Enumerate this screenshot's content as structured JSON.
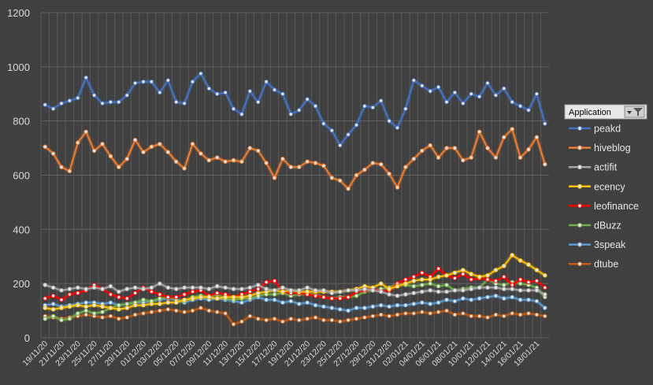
{
  "chart_data": {
    "type": "line",
    "title": "",
    "xlabel": "",
    "ylabel": "",
    "ylim": [
      0,
      1200
    ],
    "yticks": [
      0,
      200,
      400,
      600,
      800,
      1000,
      1200
    ],
    "grid": true,
    "legend_title": "Application",
    "legend_placement": "right",
    "x": [
      "19/11/20",
      "20/11/20",
      "21/11/20",
      "22/11/20",
      "23/11/20",
      "24/11/20",
      "25/11/20",
      "26/11/20",
      "27/11/20",
      "28/11/20",
      "29/11/20",
      "30/11/20",
      "01/12/20",
      "02/12/20",
      "03/12/20",
      "04/12/20",
      "05/12/20",
      "06/12/20",
      "07/12/20",
      "08/12/20",
      "09/12/20",
      "10/12/20",
      "11/12/20",
      "12/12/20",
      "13/12/20",
      "14/12/20",
      "15/12/20",
      "16/12/20",
      "17/12/20",
      "18/12/20",
      "19/12/20",
      "20/12/20",
      "21/12/20",
      "22/12/20",
      "23/12/20",
      "24/12/20",
      "25/12/20",
      "26/12/20",
      "27/12/20",
      "28/12/20",
      "29/12/20",
      "30/12/20",
      "31/12/20",
      "01/01/21",
      "02/01/21",
      "03/01/21",
      "04/01/21",
      "05/01/21",
      "06/01/21",
      "07/01/21",
      "08/01/21",
      "09/01/21",
      "10/01/21",
      "11/01/21",
      "12/01/21",
      "13/01/21",
      "14/01/21",
      "15/01/21",
      "16/01/21",
      "17/01/21",
      "18/01/21",
      "19/01/21"
    ],
    "x_tick_labels": [
      "19/11/20",
      "21/11/20",
      "23/11/20",
      "25/11/20",
      "27/11/20",
      "29/11/20",
      "01/12/20",
      "03/12/20",
      "05/12/20",
      "07/12/20",
      "09/12/20",
      "11/12/20",
      "13/12/20",
      "15/12/20",
      "17/12/20",
      "19/12/20",
      "21/12/20",
      "23/12/20",
      "25/12/20",
      "27/12/20",
      "29/12/20",
      "31/12/20",
      "02/01/21",
      "04/01/21",
      "06/01/21",
      "08/01/21",
      "10/01/21",
      "12/01/21",
      "14/01/21",
      "16/01/21",
      "18/01/21"
    ],
    "series": [
      {
        "name": "peakd",
        "color": "#4472c4",
        "values": [
          860,
          845,
          865,
          875,
          885,
          960,
          895,
          865,
          870,
          870,
          895,
          940,
          945,
          945,
          905,
          950,
          870,
          865,
          945,
          975,
          920,
          900,
          905,
          845,
          825,
          910,
          870,
          945,
          915,
          900,
          825,
          840,
          880,
          855,
          790,
          765,
          710,
          750,
          785,
          855,
          850,
          875,
          800,
          775,
          845,
          950,
          930,
          910,
          925,
          870,
          905,
          865,
          900,
          890,
          940,
          895,
          920,
          870,
          855,
          840,
          900,
          790
        ]
      },
      {
        "name": "hiveblog",
        "color": "#ed7d31",
        "values": [
          705,
          680,
          630,
          615,
          720,
          760,
          690,
          715,
          670,
          630,
          660,
          730,
          685,
          705,
          715,
          685,
          650,
          625,
          715,
          680,
          655,
          665,
          650,
          655,
          650,
          700,
          690,
          645,
          590,
          660,
          630,
          630,
          650,
          645,
          635,
          590,
          580,
          550,
          600,
          620,
          645,
          640,
          605,
          555,
          630,
          660,
          690,
          710,
          665,
          700,
          700,
          655,
          665,
          760,
          700,
          665,
          740,
          770,
          665,
          695,
          740,
          640
        ]
      },
      {
        "name": "actifit",
        "color": "#a5a5a5",
        "values": [
          195,
          185,
          175,
          180,
          185,
          180,
          185,
          180,
          190,
          170,
          180,
          185,
          180,
          185,
          200,
          185,
          180,
          185,
          185,
          185,
          180,
          190,
          185,
          180,
          180,
          185,
          195,
          180,
          175,
          185,
          175,
          175,
          185,
          175,
          175,
          165,
          170,
          175,
          175,
          180,
          175,
          170,
          160,
          155,
          160,
          165,
          170,
          175,
          170,
          170,
          175,
          175,
          180,
          185,
          185,
          185,
          180,
          180,
          175,
          175,
          175,
          160
        ]
      },
      {
        "name": "ecency",
        "color": "#ffc000",
        "values": [
          110,
          105,
          110,
          115,
          120,
          115,
          120,
          115,
          110,
          105,
          110,
          120,
          120,
          125,
          125,
          130,
          130,
          140,
          145,
          150,
          150,
          145,
          150,
          150,
          150,
          155,
          165,
          170,
          175,
          170,
          175,
          170,
          170,
          170,
          170,
          170,
          170,
          175,
          180,
          190,
          185,
          200,
          180,
          190,
          200,
          210,
          215,
          215,
          225,
          230,
          240,
          250,
          235,
          225,
          230,
          250,
          265,
          305,
          285,
          270,
          250,
          230
        ]
      },
      {
        "name": "leofinance",
        "color": "#ff0000",
        "values": [
          145,
          155,
          140,
          160,
          165,
          175,
          195,
          180,
          160,
          150,
          145,
          165,
          185,
          170,
          160,
          150,
          150,
          160,
          170,
          175,
          155,
          165,
          160,
          150,
          160,
          170,
          180,
          205,
          210,
          170,
          165,
          165,
          160,
          155,
          150,
          145,
          145,
          150,
          170,
          175,
          180,
          170,
          175,
          200,
          215,
          225,
          240,
          225,
          255,
          230,
          220,
          235,
          215,
          220,
          215,
          210,
          225,
          195,
          215,
          205,
          210,
          185
        ]
      },
      {
        "name": "dBuzz",
        "color": "#70ad47",
        "values": [
          70,
          80,
          65,
          70,
          90,
          100,
          90,
          95,
          110,
          120,
          125,
          130,
          140,
          135,
          145,
          150,
          140,
          135,
          150,
          155,
          150,
          160,
          145,
          140,
          145,
          145,
          155,
          160,
          160,
          165,
          155,
          160,
          160,
          160,
          150,
          145,
          150,
          150,
          155,
          170,
          175,
          180,
          185,
          200,
          195,
          190,
          195,
          200,
          190,
          195,
          175,
          180,
          185,
          185,
          215,
          200,
          195,
          205,
          200,
          195,
          185,
          150
        ]
      },
      {
        "name": "3speak",
        "color": "#5b9bd5",
        "values": [
          120,
          125,
          115,
          120,
          125,
          130,
          130,
          125,
          130,
          120,
          125,
          130,
          130,
          135,
          140,
          145,
          140,
          130,
          140,
          145,
          140,
          145,
          140,
          135,
          130,
          140,
          150,
          140,
          140,
          130,
          135,
          125,
          130,
          120,
          115,
          110,
          105,
          100,
          110,
          110,
          115,
          120,
          115,
          120,
          120,
          125,
          130,
          125,
          130,
          140,
          135,
          145,
          140,
          145,
          150,
          155,
          145,
          150,
          140,
          140,
          135,
          110
        ]
      },
      {
        "name": "dtube",
        "color": "#c55a11",
        "values": [
          80,
          75,
          70,
          75,
          80,
          85,
          80,
          75,
          80,
          70,
          75,
          85,
          90,
          95,
          100,
          105,
          100,
          95,
          100,
          110,
          100,
          95,
          90,
          50,
          60,
          80,
          70,
          65,
          70,
          60,
          70,
          65,
          70,
          75,
          65,
          65,
          60,
          65,
          70,
          75,
          80,
          85,
          80,
          85,
          90,
          90,
          95,
          90,
          95,
          100,
          85,
          90,
          80,
          80,
          75,
          85,
          80,
          90,
          85,
          90,
          85,
          80
        ]
      }
    ]
  }
}
